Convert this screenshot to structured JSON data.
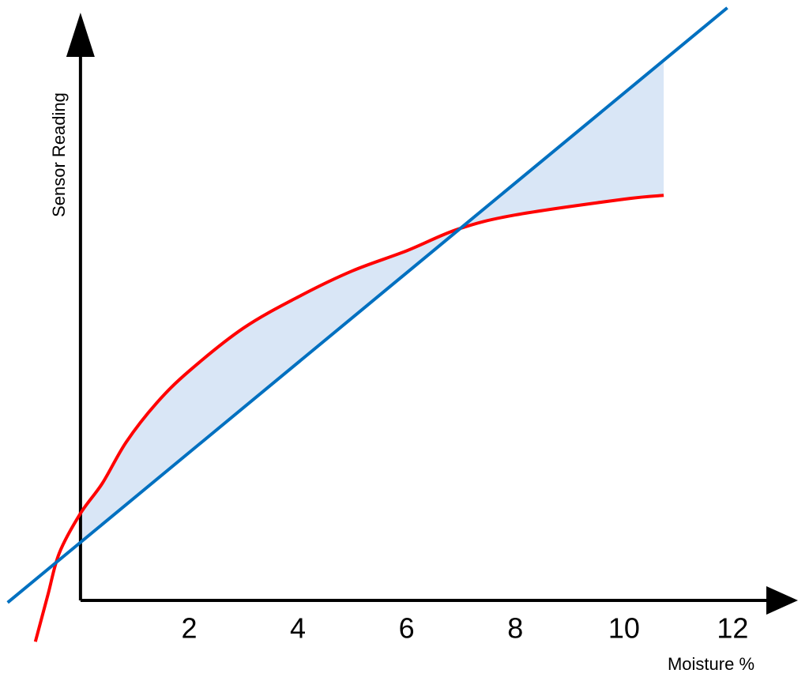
{
  "chart_data": {
    "type": "line",
    "xlabel": "Moisture %",
    "ylabel": "Sensor Reading",
    "xlim": [
      -1.35,
      13.2
    ],
    "ylim": [
      -0.8,
      11
    ],
    "xticks": [
      2,
      4,
      6,
      8,
      10,
      12
    ],
    "fill_between": {
      "color": "#d9e6f6"
    },
    "series": [
      {
        "color": "#ff0000",
        "x": [
          -0.83,
          -0.6,
          -0.39,
          0,
          0.4,
          0.84,
          1.4,
          2.0,
          3.0,
          4.04,
          5.0,
          6.0,
          6.95,
          8.0,
          10.0,
          10.73
        ],
        "y": [
          -0.76,
          0.1,
          0.87,
          1.6,
          2.15,
          2.91,
          3.63,
          4.22,
          5.01,
          5.6,
          6.06,
          6.43,
          6.83,
          7.09,
          7.38,
          7.45
        ]
      },
      {
        "color": "#0070c0",
        "x": [
          -1.34,
          11.9
        ],
        "y": [
          -0.04,
          10.9
        ]
      }
    ]
  }
}
